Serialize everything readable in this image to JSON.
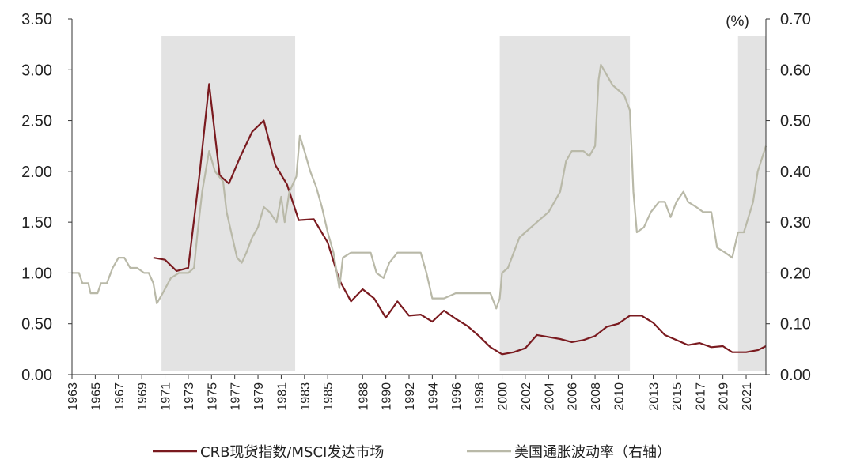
{
  "chart_data": {
    "type": "line",
    "title": "",
    "xlabel": "",
    "ylabel_left": "",
    "ylabel_right": "(%)",
    "x_range": [
      1963,
      2022.7
    ],
    "ylim_left": [
      0,
      3.5
    ],
    "ylim_right": [
      0,
      0.7
    ],
    "yticks_left": [
      "0.00",
      "0.50",
      "1.00",
      "1.50",
      "2.00",
      "2.50",
      "3.00",
      "3.50"
    ],
    "yticks_right": [
      "0.00",
      "0.10",
      "0.20",
      "0.30",
      "0.40",
      "0.50",
      "0.60",
      "0.70"
    ],
    "xticks": [
      "1963",
      "1965",
      "1967",
      "1969",
      "1971",
      "1973",
      "1975",
      "1977",
      "1979",
      "1981",
      "1983",
      "1985",
      "1988",
      "1990",
      "1992",
      "1994",
      "1996",
      "1998",
      "2000",
      "2002",
      "2004",
      "2006",
      "2008",
      "2010",
      "2013",
      "2015",
      "2017",
      "2019",
      "2021"
    ],
    "grid": false,
    "legend_position": "bottom",
    "shaded_periods": [
      [
        1970.7,
        1982.2
      ],
      [
        1999.8,
        2011.0
      ],
      [
        2020.3,
        2022.7
      ]
    ],
    "series": [
      {
        "name": "CRB现货指数/MSCI发达市场",
        "axis": "left",
        "color": "#7a1a1f",
        "points": [
          [
            1970.0,
            1.15
          ],
          [
            1971.0,
            1.13
          ],
          [
            1972.0,
            1.02
          ],
          [
            1973.0,
            1.05
          ],
          [
            1974.0,
            2.0
          ],
          [
            1974.8,
            2.86
          ],
          [
            1975.7,
            1.96
          ],
          [
            1976.5,
            1.88
          ],
          [
            1977.5,
            2.15
          ],
          [
            1978.5,
            2.39
          ],
          [
            1979.5,
            2.5
          ],
          [
            1980.5,
            2.06
          ],
          [
            1981.5,
            1.87
          ],
          [
            1982.5,
            1.52
          ],
          [
            1983.8,
            1.53
          ],
          [
            1985.0,
            1.3
          ],
          [
            1986.0,
            0.93
          ],
          [
            1987.0,
            0.72
          ],
          [
            1988.0,
            0.84
          ],
          [
            1989.0,
            0.75
          ],
          [
            1990.0,
            0.56
          ],
          [
            1991.0,
            0.72
          ],
          [
            1992.0,
            0.58
          ],
          [
            1993.0,
            0.59
          ],
          [
            1994.0,
            0.52
          ],
          [
            1995.0,
            0.63
          ],
          [
            1996.0,
            0.55
          ],
          [
            1997.0,
            0.48
          ],
          [
            1998.0,
            0.38
          ],
          [
            1999.0,
            0.27
          ],
          [
            2000.0,
            0.2
          ],
          [
            2001.0,
            0.22
          ],
          [
            2002.0,
            0.26
          ],
          [
            2003.0,
            0.39
          ],
          [
            2004.0,
            0.37
          ],
          [
            2005.0,
            0.35
          ],
          [
            2006.0,
            0.32
          ],
          [
            2007.0,
            0.34
          ],
          [
            2008.0,
            0.38
          ],
          [
            2009.0,
            0.47
          ],
          [
            2010.0,
            0.5
          ],
          [
            2011.0,
            0.58
          ],
          [
            2012.0,
            0.58
          ],
          [
            2013.0,
            0.51
          ],
          [
            2014.0,
            0.39
          ],
          [
            2015.0,
            0.34
          ],
          [
            2016.0,
            0.29
          ],
          [
            2017.0,
            0.31
          ],
          [
            2018.0,
            0.27
          ],
          [
            2019.0,
            0.28
          ],
          [
            2019.8,
            0.22
          ],
          [
            2021.0,
            0.22
          ],
          [
            2022.0,
            0.24
          ],
          [
            2022.7,
            0.28
          ]
        ]
      },
      {
        "name": "美国通胀波动率（右轴）",
        "axis": "right",
        "color": "#b9b9a8",
        "points": [
          [
            1963.0,
            0.2
          ],
          [
            1963.6,
            0.2
          ],
          [
            1963.9,
            0.18
          ],
          [
            1964.4,
            0.18
          ],
          [
            1964.6,
            0.16
          ],
          [
            1965.2,
            0.16
          ],
          [
            1965.5,
            0.18
          ],
          [
            1966.0,
            0.18
          ],
          [
            1966.5,
            0.21
          ],
          [
            1967.0,
            0.23
          ],
          [
            1967.5,
            0.23
          ],
          [
            1968.0,
            0.21
          ],
          [
            1968.6,
            0.21
          ],
          [
            1969.2,
            0.2
          ],
          [
            1969.6,
            0.2
          ],
          [
            1970.0,
            0.18
          ],
          [
            1970.3,
            0.14
          ],
          [
            1970.8,
            0.16
          ],
          [
            1971.5,
            0.19
          ],
          [
            1972.2,
            0.2
          ],
          [
            1973.0,
            0.2
          ],
          [
            1973.5,
            0.21
          ],
          [
            1973.8,
            0.28
          ],
          [
            1974.2,
            0.36
          ],
          [
            1974.8,
            0.44
          ],
          [
            1975.3,
            0.4
          ],
          [
            1976.0,
            0.38
          ],
          [
            1976.3,
            0.32
          ],
          [
            1976.8,
            0.27
          ],
          [
            1977.2,
            0.23
          ],
          [
            1977.6,
            0.22
          ],
          [
            1978.0,
            0.24
          ],
          [
            1978.5,
            0.27
          ],
          [
            1979.0,
            0.29
          ],
          [
            1979.5,
            0.33
          ],
          [
            1980.0,
            0.32
          ],
          [
            1980.6,
            0.3
          ],
          [
            1981.0,
            0.35
          ],
          [
            1981.3,
            0.3
          ],
          [
            1981.7,
            0.36
          ],
          [
            1982.3,
            0.39
          ],
          [
            1982.6,
            0.47
          ],
          [
            1983.0,
            0.44
          ],
          [
            1983.5,
            0.4
          ],
          [
            1984.0,
            0.37
          ],
          [
            1984.5,
            0.33
          ],
          [
            1985.0,
            0.28
          ],
          [
            1985.5,
            0.24
          ],
          [
            1986.0,
            0.17
          ],
          [
            1986.3,
            0.23
          ],
          [
            1987.0,
            0.24
          ],
          [
            1988.0,
            0.24
          ],
          [
            1988.7,
            0.24
          ],
          [
            1989.2,
            0.2
          ],
          [
            1989.8,
            0.19
          ],
          [
            1990.3,
            0.22
          ],
          [
            1991.0,
            0.24
          ],
          [
            1992.0,
            0.24
          ],
          [
            1993.0,
            0.24
          ],
          [
            1993.5,
            0.2
          ],
          [
            1994.0,
            0.15
          ],
          [
            1995.0,
            0.15
          ],
          [
            1996.0,
            0.16
          ],
          [
            1997.0,
            0.16
          ],
          [
            1998.0,
            0.16
          ],
          [
            1999.0,
            0.16
          ],
          [
            1999.5,
            0.13
          ],
          [
            1999.8,
            0.15
          ],
          [
            2000.0,
            0.2
          ],
          [
            2000.5,
            0.21
          ],
          [
            2001.0,
            0.24
          ],
          [
            2001.5,
            0.27
          ],
          [
            2002.0,
            0.28
          ],
          [
            2003.0,
            0.3
          ],
          [
            2004.0,
            0.32
          ],
          [
            2005.0,
            0.36
          ],
          [
            2005.5,
            0.42
          ],
          [
            2006.0,
            0.44
          ],
          [
            2007.0,
            0.44
          ],
          [
            2007.5,
            0.43
          ],
          [
            2008.0,
            0.45
          ],
          [
            2008.3,
            0.58
          ],
          [
            2008.5,
            0.61
          ],
          [
            2009.0,
            0.59
          ],
          [
            2009.5,
            0.57
          ],
          [
            2010.0,
            0.56
          ],
          [
            2010.5,
            0.55
          ],
          [
            2011.0,
            0.52
          ],
          [
            2011.3,
            0.36
          ],
          [
            2011.6,
            0.28
          ],
          [
            2012.2,
            0.29
          ],
          [
            2012.8,
            0.32
          ],
          [
            2013.5,
            0.34
          ],
          [
            2014.0,
            0.34
          ],
          [
            2014.5,
            0.31
          ],
          [
            2015.0,
            0.34
          ],
          [
            2015.6,
            0.36
          ],
          [
            2016.0,
            0.34
          ],
          [
            2016.7,
            0.33
          ],
          [
            2017.3,
            0.32
          ],
          [
            2018.0,
            0.32
          ],
          [
            2018.5,
            0.25
          ],
          [
            2019.2,
            0.24
          ],
          [
            2019.8,
            0.23
          ],
          [
            2020.3,
            0.28
          ],
          [
            2020.8,
            0.28
          ],
          [
            2021.2,
            0.31
          ],
          [
            2021.6,
            0.34
          ],
          [
            2022.0,
            0.4
          ],
          [
            2022.7,
            0.45
          ]
        ]
      }
    ]
  }
}
